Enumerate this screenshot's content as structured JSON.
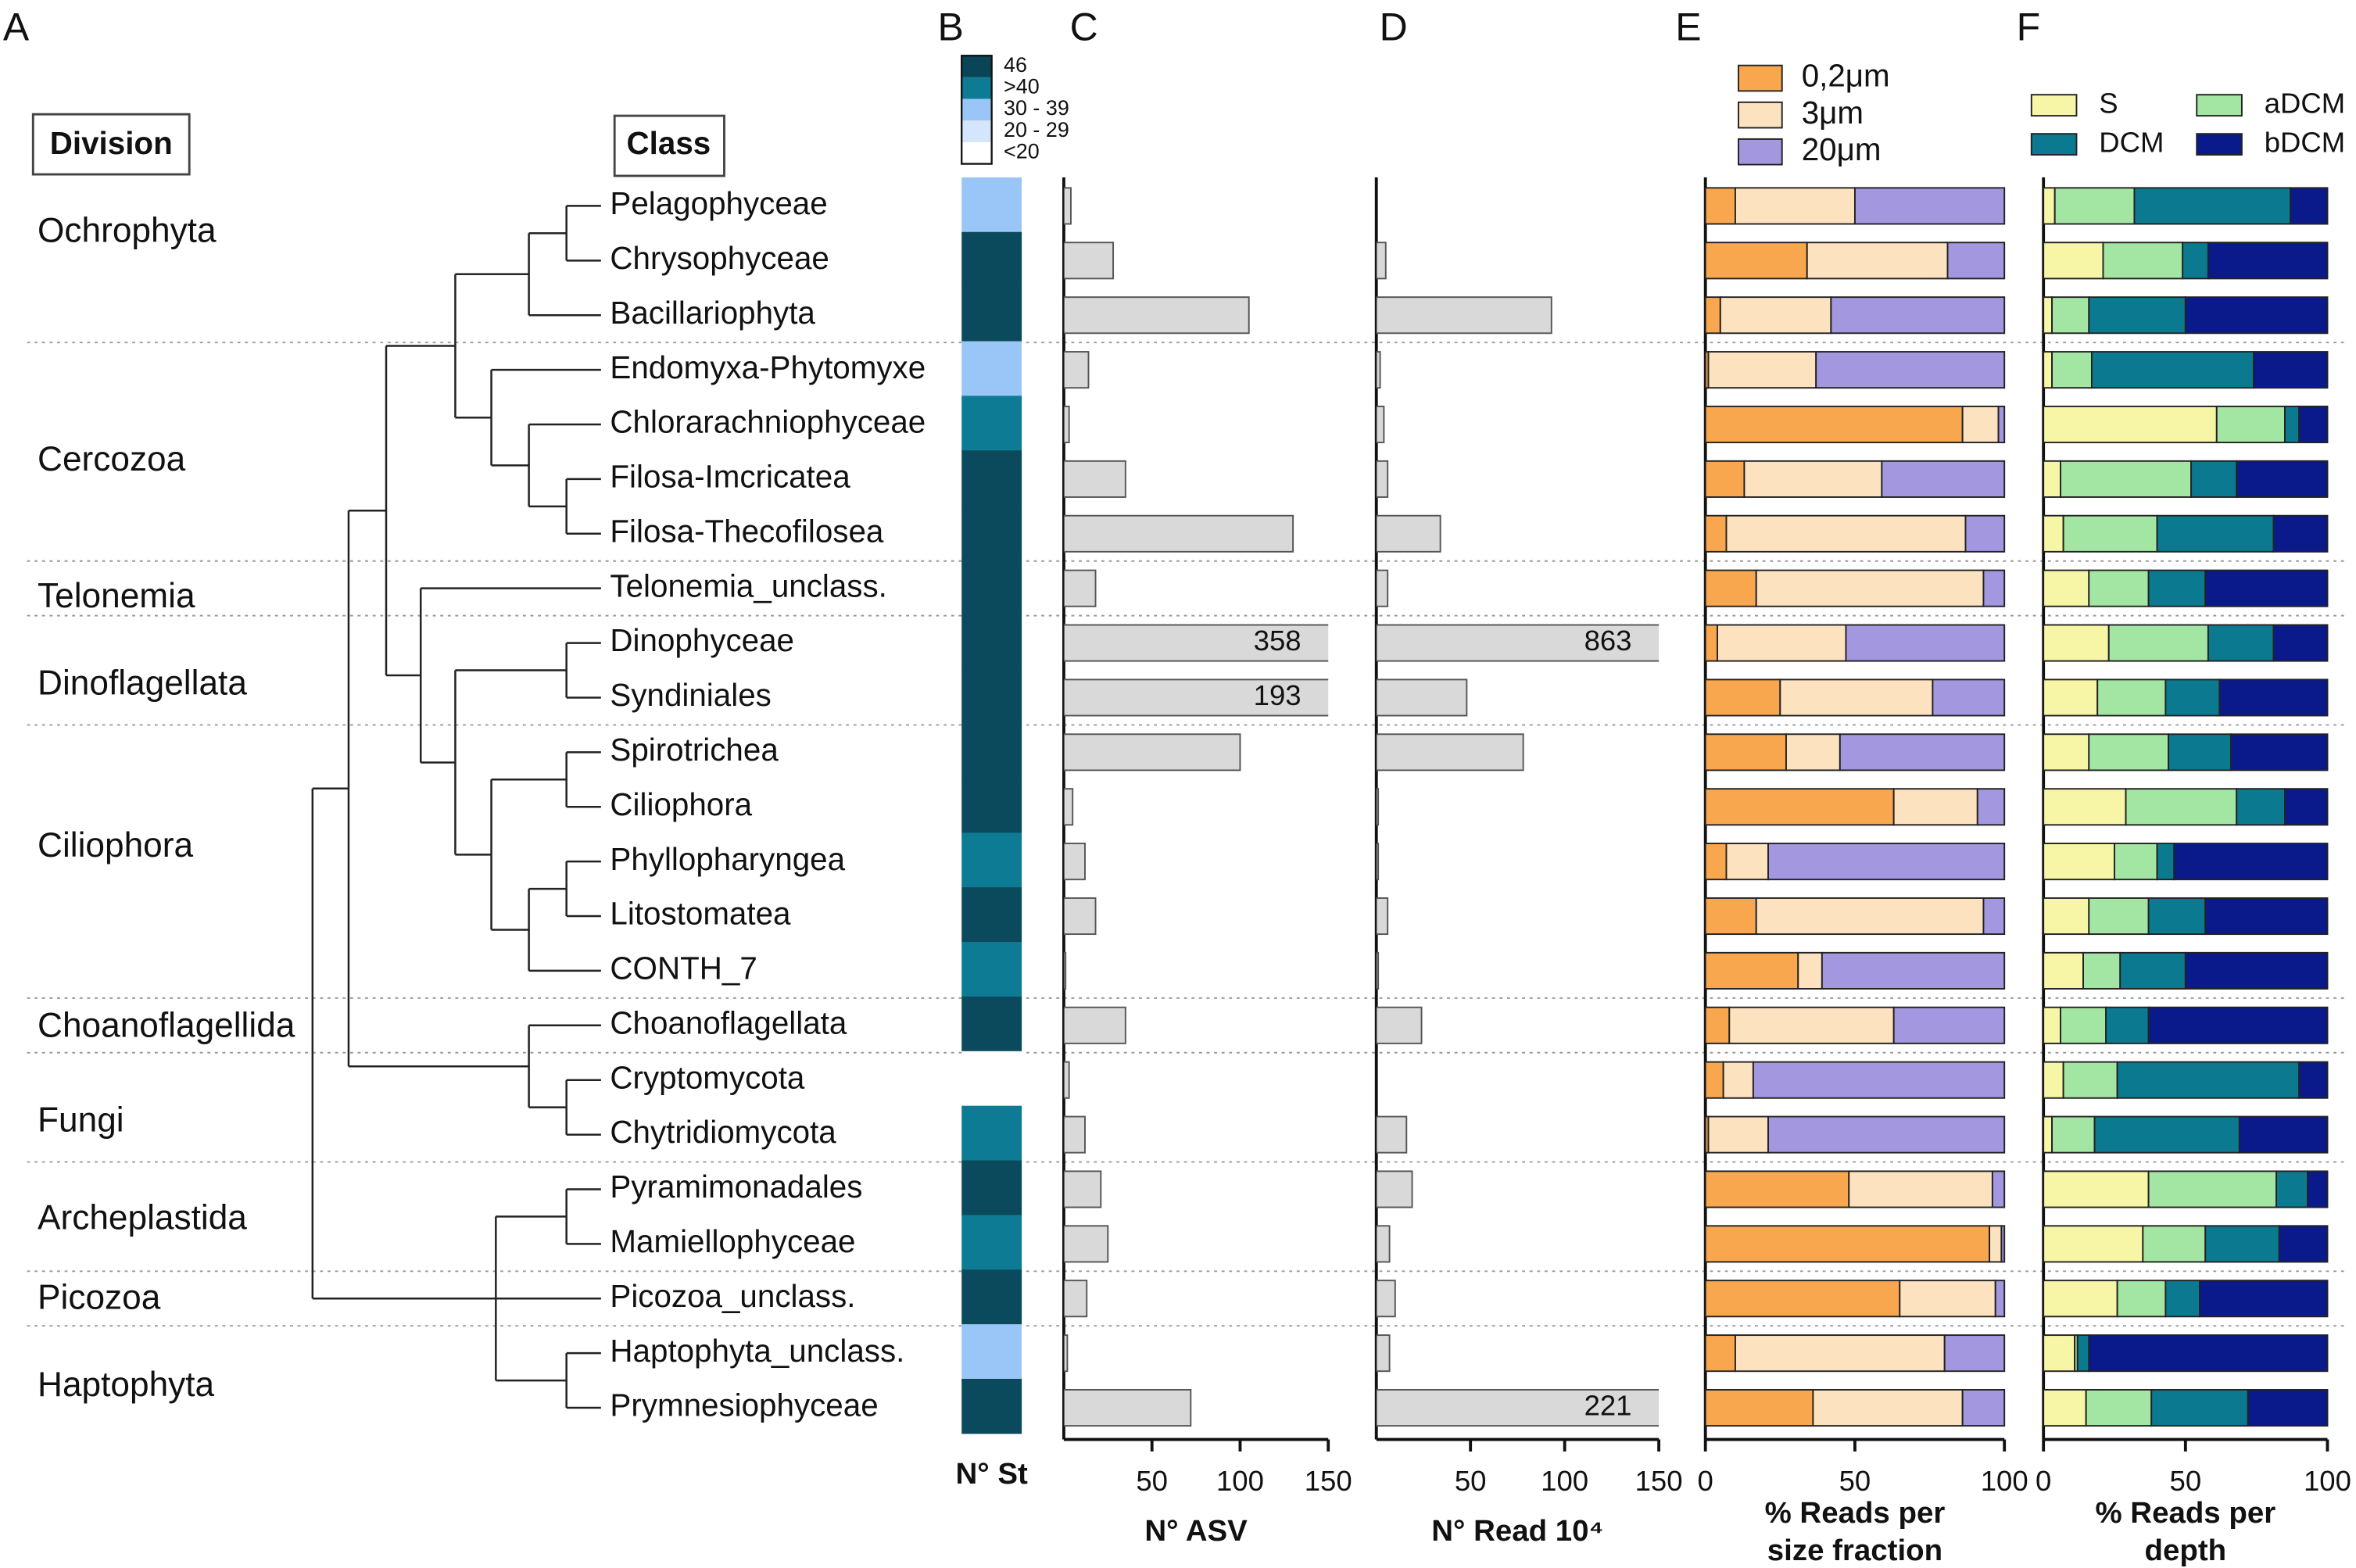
{
  "panel_labels": [
    "A",
    "B",
    "C",
    "D",
    "E",
    "F"
  ],
  "division_header": "Division",
  "class_header": "Class",
  "divisions": [
    "Ochrophyta",
    "Cercozoa",
    "Telonemia",
    "Dinoflagellata",
    "Ciliophora",
    "Choanoflagellida",
    "Fungi",
    "Archeplastida",
    "Picozoa",
    "Haptophyta"
  ],
  "classes": [
    "Pelagophyceae",
    "Chrysophyceae",
    "Bacillariophyta",
    "Endomyxa-Phytomyxe",
    "Chlorarachniophyceae",
    "Filosa-Imcricatea",
    "Filosa-Thecofilosea",
    "Telonemia_unclass.",
    "Dinophyceae",
    "Syndiniales",
    "Spirotrichea",
    "Ciliophora",
    "Phyllopharyngea",
    "Litostomatea",
    "CONTH_7",
    "Choanoflagellata",
    "Cryptomycota",
    "Chytridiomycota",
    "Pyramimonadales",
    "Mamiellophyceae",
    "Picozoa_unclass.",
    "Haptophyta_unclass.",
    "Prymnesiophyceae"
  ],
  "chart_data": [
    {
      "type": "heatmap",
      "xlabel": "N° St",
      "legend_labels": [
        "46",
        ">40",
        "30 - 39",
        "20 - 29",
        "<20"
      ],
      "legend_colors": [
        "#0a4557",
        "#0d7b93",
        "#99c6f6",
        "#d4e6fb",
        "#ffffff"
      ],
      "cell_colors": [
        "#99c6f6",
        "#0b4a5c",
        "#0b4a5c",
        "#99c6f6",
        "#0d7b93",
        "#0b4a5c",
        "#0b4a5c",
        "#0b4a5c",
        "#0b4a5c",
        "#0b4a5c",
        "#0b4a5c",
        "#0b4a5c",
        "#0d7b93",
        "#0b4a5c",
        "#0d7b93",
        "#0b4a5c",
        "#ffffff",
        "#0d7b93",
        "#0b4a5c",
        "#0d7b93",
        "#0b4a5c",
        "#99c6f6",
        "#0b4a5c"
      ]
    },
    {
      "type": "bar",
      "xlabel": "N° ASV",
      "color": "#d9d9d9",
      "values": [
        4,
        28,
        105,
        14,
        3,
        35,
        130,
        18,
        358,
        193,
        100,
        5,
        12,
        18,
        1,
        35,
        3,
        12,
        21,
        25,
        13,
        2,
        72
      ],
      "xlim": [
        0,
        150
      ],
      "xticks": [
        50,
        100,
        150
      ]
    },
    {
      "type": "bar",
      "xlabel": "N° Read 10⁴",
      "color": "#d9d9d9",
      "values": [
        0,
        5,
        93,
        2,
        4,
        6,
        34,
        6,
        863,
        48,
        78,
        1,
        1,
        6,
        1,
        24,
        0,
        16,
        19,
        7,
        10,
        7,
        221
      ],
      "xlim": [
        0,
        150
      ],
      "xticks": [
        50,
        100,
        150
      ]
    },
    {
      "type": "stacked_bar",
      "xlabel": [
        "% Reads per",
        "size fraction"
      ],
      "legend": "top-left",
      "xlim": [
        0,
        100
      ],
      "xticks": [
        0,
        50,
        100
      ],
      "series": [
        {
          "name": "0,2μm",
          "color": "#f9a74f",
          "values": [
            10,
            34,
            5,
            1,
            86,
            13,
            7,
            17,
            4,
            25,
            27,
            63,
            7,
            17,
            31,
            8,
            6,
            1,
            48,
            95,
            65,
            10,
            36
          ]
        },
        {
          "name": "3μm",
          "color": "#fde2c0",
          "values": [
            40,
            47,
            37,
            36,
            12,
            46,
            80,
            76,
            43,
            51,
            18,
            28,
            14,
            76,
            8,
            55,
            10,
            20,
            48,
            4,
            32,
            70,
            50
          ]
        },
        {
          "name": "20μm",
          "color": "#a397e0",
          "values": [
            50,
            19,
            58,
            63,
            2,
            41,
            13,
            7,
            53,
            24,
            55,
            9,
            79,
            7,
            61,
            37,
            84,
            79,
            4,
            1,
            3,
            20,
            14
          ]
        }
      ]
    },
    {
      "type": "stacked_bar",
      "xlabel": [
        "% Reads per",
        "depth"
      ],
      "legend": "top",
      "xlim": [
        0,
        100
      ],
      "xticks": [
        0,
        50,
        100
      ],
      "series": [
        {
          "name": "S",
          "color": "#f7f5a6",
          "values": [
            4,
            21,
            3,
            3,
            61,
            6,
            7,
            16,
            23,
            19,
            16,
            29,
            25,
            16,
            14,
            6,
            7,
            3,
            37,
            35,
            26,
            11,
            15
          ]
        },
        {
          "name": "aDCM",
          "color": "#a3e6a3",
          "values": [
            28,
            28,
            13,
            14,
            24,
            46,
            33,
            21,
            35,
            24,
            28,
            39,
            15,
            21,
            13,
            16,
            19,
            15,
            45,
            22,
            17,
            1,
            23
          ]
        },
        {
          "name": "DCM",
          "color": "#0b7a91",
          "values": [
            55,
            9,
            34,
            57,
            5,
            16,
            41,
            20,
            23,
            19,
            22,
            17,
            6,
            20,
            23,
            15,
            64,
            51,
            11,
            26,
            12,
            4,
            34
          ]
        },
        {
          "name": "bDCM",
          "color": "#0a1a8a",
          "values": [
            13,
            42,
            50,
            26,
            10,
            32,
            19,
            43,
            19,
            38,
            34,
            15,
            54,
            43,
            50,
            63,
            10,
            31,
            7,
            17,
            45,
            84,
            28
          ]
        }
      ]
    }
  ]
}
